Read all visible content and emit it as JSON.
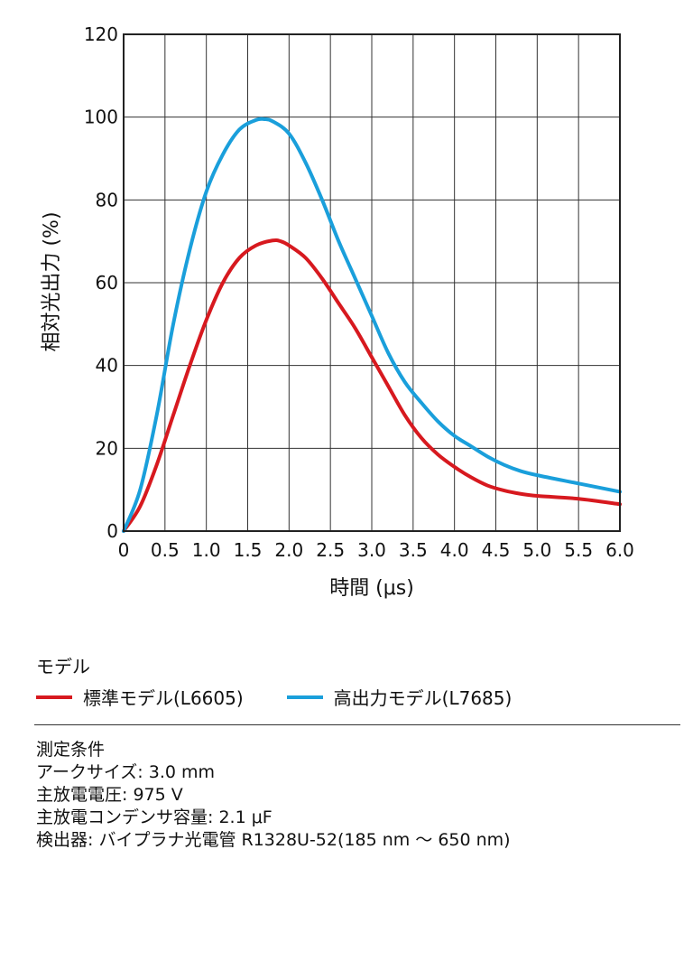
{
  "chart_data": {
    "type": "line",
    "title": "",
    "xlabel": "時間 (μs)",
    "ylabel": "相対光出力 (%)",
    "xlim": [
      0,
      6.0
    ],
    "ylim": [
      0,
      120
    ],
    "grid": true,
    "x_ticks": [
      "0",
      "0.5",
      "1.0",
      "1.5",
      "2.0",
      "2.5",
      "3.0",
      "3.5",
      "4.0",
      "4.5",
      "5.0",
      "5.5",
      "6.0"
    ],
    "y_ticks": [
      "0",
      "20",
      "40",
      "60",
      "80",
      "100",
      "120"
    ],
    "legend_title": "モデル",
    "legend_position": "bottom",
    "series": [
      {
        "name": "標準モデル(L6605)",
        "color": "#d7191f",
        "x": [
          0,
          0.2,
          0.4,
          0.6,
          0.8,
          1.0,
          1.2,
          1.4,
          1.6,
          1.8,
          1.9,
          2.0,
          2.2,
          2.4,
          2.6,
          2.8,
          3.0,
          3.2,
          3.4,
          3.6,
          3.8,
          4.0,
          4.2,
          4.4,
          4.6,
          4.8,
          5.0,
          5.5,
          6.0
        ],
        "y": [
          0,
          6,
          16,
          28,
          40,
          51,
          60,
          66,
          69,
          70.2,
          70,
          69,
          66,
          61,
          55,
          49,
          42,
          35,
          28,
          22.5,
          18.5,
          15.5,
          13,
          11,
          9.8,
          9,
          8.5,
          7.8,
          6.5
        ]
      },
      {
        "name": "高出力モデル(L7685)",
        "color": "#1a9fdb",
        "x": [
          0,
          0.2,
          0.4,
          0.6,
          0.8,
          1.0,
          1.2,
          1.4,
          1.6,
          1.7,
          1.8,
          2.0,
          2.2,
          2.4,
          2.6,
          2.8,
          3.0,
          3.2,
          3.4,
          3.6,
          3.8,
          4.0,
          4.2,
          4.4,
          4.6,
          4.8,
          5.0,
          5.5,
          6.0
        ],
        "y": [
          0,
          10,
          28,
          50,
          68,
          82,
          91,
          97,
          99.3,
          99.5,
          99,
          96,
          89,
          80,
          70,
          61,
          52,
          43,
          36,
          31,
          26.5,
          23,
          20.5,
          18,
          16,
          14.5,
          13.5,
          11.5,
          9.5
        ]
      }
    ]
  },
  "conditions": {
    "title": "測定条件",
    "lines": [
      "アークサイズ: 3.0 mm",
      "主放電電圧: 975 V",
      "主放電コンデンサ容量: 2.1 μF",
      "検出器: バイプラナ光電管 R1328U-52(185 nm 〜 650 nm)"
    ]
  }
}
